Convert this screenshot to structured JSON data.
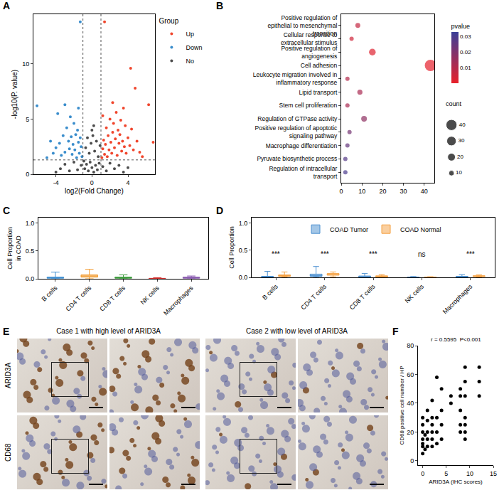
{
  "chart_data": [
    {
      "panel": "A",
      "type": "scatter",
      "x_label": "log2(Fold Change)",
      "y_label": "-log10(P. value)",
      "xlim": [
        -6.5,
        7
      ],
      "xticks": [
        -4,
        0,
        4
      ],
      "ylim": [
        0,
        14.5
      ],
      "yticks": [
        0,
        5,
        10
      ],
      "grid": false,
      "legend": "right",
      "legend_title": "Group",
      "marker": "circle",
      "thresholds": {
        "x": [
          -1,
          1
        ],
        "y": 1.3
      },
      "series": [
        {
          "name": "Up",
          "color": "#f0462d",
          "points": [
            [
              1.1,
              1.5
            ],
            [
              1.2,
              2.3
            ],
            [
              1.3,
              3.1
            ],
            [
              1.4,
              1.8
            ],
            [
              1.5,
              2.7
            ],
            [
              1.6,
              4.2
            ],
            [
              1.7,
              1.6
            ],
            [
              1.8,
              3.5
            ],
            [
              1.9,
              2.2
            ],
            [
              2.0,
              5.0
            ],
            [
              2.1,
              2.9
            ],
            [
              2.2,
              1.9
            ],
            [
              2.3,
              3.8
            ],
            [
              2.4,
              4.6
            ],
            [
              2.5,
              2.4
            ],
            [
              2.6,
              3.2
            ],
            [
              2.7,
              5.6
            ],
            [
              2.8,
              1.7
            ],
            [
              2.9,
              4.0
            ],
            [
              3.0,
              2.8
            ],
            [
              3.1,
              3.6
            ],
            [
              3.2,
              4.9
            ],
            [
              3.3,
              2.1
            ],
            [
              3.4,
              3.0
            ],
            [
              3.5,
              6.0
            ],
            [
              3.6,
              2.5
            ],
            [
              3.7,
              4.4
            ],
            [
              3.8,
              1.9
            ],
            [
              4.0,
              3.3
            ],
            [
              4.2,
              2.6
            ],
            [
              4.4,
              4.1
            ],
            [
              4.6,
              2.2
            ],
            [
              4.8,
              7.8
            ],
            [
              5.0,
              3.0
            ],
            [
              5.3,
              2.0
            ],
            [
              4.3,
              9.6
            ],
            [
              6.3,
              6.3
            ],
            [
              6.8,
              2.9
            ],
            [
              1.4,
              13.8
            ],
            [
              2.3,
              6.5
            ],
            [
              5.6,
              1.6
            ],
            [
              1.2,
              5.3
            ]
          ]
        },
        {
          "name": "Down",
          "color": "#3a8dcc",
          "points": [
            [
              -1.1,
              1.6
            ],
            [
              -1.2,
              2.5
            ],
            [
              -1.3,
              3.3
            ],
            [
              -1.4,
              1.9
            ],
            [
              -1.5,
              2.9
            ],
            [
              -1.6,
              4.0
            ],
            [
              -1.7,
              1.5
            ],
            [
              -1.8,
              3.6
            ],
            [
              -1.9,
              2.2
            ],
            [
              -2.0,
              4.6
            ],
            [
              -2.1,
              2.7
            ],
            [
              -2.2,
              1.8
            ],
            [
              -2.3,
              3.4
            ],
            [
              -2.4,
              5.2
            ],
            [
              -2.5,
              2.3
            ],
            [
              -2.6,
              3.0
            ],
            [
              -2.8,
              4.2
            ],
            [
              -3.0,
              2.0
            ],
            [
              -3.2,
              3.5
            ],
            [
              -3.4,
              1.7
            ],
            [
              -3.6,
              2.8
            ],
            [
              -3.8,
              5.5
            ],
            [
              -4.0,
              2.4
            ],
            [
              -4.3,
              1.9
            ],
            [
              -4.6,
              3.0
            ],
            [
              -1.3,
              13.8
            ],
            [
              -6.1,
              6.2
            ],
            [
              -1.5,
              6.0
            ],
            [
              -3.0,
              6.3
            ],
            [
              -5.0,
              1.5
            ]
          ]
        },
        {
          "name": "No",
          "color": "#4d4d4d",
          "points": [
            [
              -0.9,
              1.2
            ],
            [
              -0.7,
              2.4
            ],
            [
              -0.5,
              3.3
            ],
            [
              -0.3,
              1.9
            ],
            [
              -0.1,
              2.8
            ],
            [
              0.1,
              3.5
            ],
            [
              0.3,
              2.1
            ],
            [
              0.5,
              3.0
            ],
            [
              0.7,
              1.6
            ],
            [
              0.9,
              2.6
            ],
            [
              -0.8,
              0.5
            ],
            [
              -0.6,
              0.9
            ],
            [
              -0.4,
              0.3
            ],
            [
              -0.2,
              1.1
            ],
            [
              0,
              0.6
            ],
            [
              0.2,
              0.2
            ],
            [
              0.4,
              0.8
            ],
            [
              0.6,
              0.4
            ],
            [
              0.8,
              1.0
            ],
            [
              1.2,
              0.7
            ],
            [
              1.6,
              0.3
            ],
            [
              2.0,
              1.0
            ],
            [
              2.5,
              0.5
            ],
            [
              3.0,
              0.8
            ],
            [
              3.5,
              0.2
            ],
            [
              4.0,
              0.6
            ],
            [
              -1.2,
              0.8
            ],
            [
              -1.6,
              0.4
            ],
            [
              -2.0,
              1.1
            ],
            [
              -2.5,
              0.3
            ],
            [
              -3.0,
              0.9
            ],
            [
              -3.5,
              0.5
            ],
            [
              -4.0,
              0.2
            ],
            [
              0,
              4.0
            ],
            [
              0.2,
              4.4
            ]
          ]
        }
      ]
    },
    {
      "panel": "B",
      "type": "scatter",
      "marker": "circle",
      "grid": false,
      "categories": [
        "Positive regulation of epithelial to mesenchymal transition",
        "Cellular response to extracellular stimulus",
        "Positive regulation of angiogenesis",
        "Cell adhesion",
        "Leukocyte migration involved in inflammatory response",
        "Lipid transport",
        "Stem cell proliferation",
        "Regulation of GTPase activity",
        "Positive regulation of apoptotic signaling pathway",
        "Macrophage differentiation",
        "Pyruvate biosynthetic process",
        "Regulation of intracellular transport"
      ],
      "values": [
        8,
        5,
        15,
        43,
        3,
        9,
        3,
        11,
        4,
        3,
        2,
        2
      ],
      "pvalues": [
        0.007,
        0.005,
        0.002,
        0.0005,
        0.01,
        0.012,
        0.012,
        0.017,
        0.022,
        0.025,
        0.028,
        0.03
      ],
      "xlim": [
        0,
        45
      ],
      "xticks": [
        0,
        10,
        20,
        30,
        40
      ],
      "colorbar": {
        "title": "pvalue",
        "range": [
          0,
          0.033
        ],
        "ticks": [
          0.01,
          0.02,
          0.03
        ],
        "colors": [
          "#e8202a",
          "#3b3f98"
        ]
      },
      "size_legend": {
        "title": "count",
        "values": [
          10,
          20,
          30,
          40
        ]
      }
    },
    {
      "panel": "C",
      "type": "box",
      "y_label": "Cell Proportion in COAD",
      "grid": false,
      "categories": [
        "B cells",
        "CD4 T cells",
        "CD8 T cells",
        "NK cells",
        "Macrophages"
      ],
      "colors": [
        "#3f8fd2",
        "#f29a2e",
        "#3a9a3a",
        "#d3302f",
        "#8a5ab0"
      ],
      "stats": {
        "q1": [
          0.01,
          0.03,
          0.01,
          0.002,
          0.01
        ],
        "median": [
          0.02,
          0.05,
          0.02,
          0.005,
          0.02
        ],
        "q3": [
          0.03,
          0.07,
          0.03,
          0.008,
          0.03
        ],
        "lowerfence": [
          0,
          0,
          0,
          0,
          0
        ],
        "upperfence": [
          0.12,
          0.17,
          0.07,
          0.02,
          0.05
        ]
      },
      "ylim": [
        0,
        1.1
      ],
      "yticks": [
        {
          "value": 0,
          "label": "0.0"
        },
        {
          "value": 0.5,
          "label": "0.5"
        },
        {
          "value": 1,
          "label": "1.0"
        }
      ]
    },
    {
      "panel": "D",
      "type": "box",
      "y_label": "Cell Proportion",
      "grid": false,
      "legend": "top",
      "categories": [
        "B cells",
        "CD4 T cells",
        "CD8 T cells",
        "NK cells",
        "Macrophages"
      ],
      "significance": [
        "***",
        "***",
        "***",
        "ns",
        "***"
      ],
      "ylim": [
        0,
        1.1
      ],
      "yticks": [
        {
          "value": 0,
          "label": "0.0"
        },
        {
          "value": 0.5,
          "label": "0.5"
        },
        {
          "value": 1,
          "label": "1.0"
        }
      ],
      "series": [
        {
          "name": "COAD Tumor",
          "color": "#4a8fd0",
          "stats": {
            "q1": [
              0.005,
              0.02,
              0.005,
              0.001,
              0.005
            ],
            "median": [
              0.01,
              0.035,
              0.012,
              0.003,
              0.01
            ],
            "q3": [
              0.02,
              0.06,
              0.025,
              0.006,
              0.02
            ],
            "lowerfence": [
              0,
              0,
              0,
              0,
              0
            ],
            "upperfence": [
              0.11,
              0.2,
              0.07,
              0.015,
              0.05
            ]
          }
        },
        {
          "name": "COAD Normal",
          "color": "#f5a040",
          "stats": {
            "q1": [
              0.02,
              0.04,
              0.01,
              0.001,
              0.015
            ],
            "median": [
              0.03,
              0.055,
              0.018,
              0.003,
              0.022
            ],
            "q3": [
              0.045,
              0.07,
              0.028,
              0.005,
              0.03
            ],
            "lowerfence": [
              0.003,
              0.01,
              0,
              0,
              0.005
            ],
            "upperfence": [
              0.1,
              0.1,
              0.05,
              0.012,
              0.045
            ]
          }
        }
      ]
    },
    {
      "panel": "F",
      "type": "scatter",
      "marker": "circle",
      "grid": false,
      "color": "#000000",
      "x_label": "ARID3A (IHC scores)",
      "y_label": "CD68 positive cell number / HP",
      "annotation": "r = 0.5595  P<0.001",
      "xlim": [
        -1,
        15
      ],
      "xticks": [
        0,
        5,
        10,
        15
      ],
      "ylim": [
        -3,
        80
      ],
      "yticks": [
        0,
        20,
        40,
        60,
        80
      ],
      "points": [
        [
          0,
          5
        ],
        [
          0,
          10
        ],
        [
          0,
          12
        ],
        [
          0,
          15
        ],
        [
          0,
          20
        ],
        [
          0,
          25
        ],
        [
          0,
          30
        ],
        [
          0.5,
          8
        ],
        [
          0.5,
          18
        ],
        [
          1,
          10
        ],
        [
          1,
          15
        ],
        [
          1,
          20
        ],
        [
          1,
          28
        ],
        [
          1,
          35
        ],
        [
          2,
          10
        ],
        [
          2,
          15
        ],
        [
          2,
          20
        ],
        [
          2,
          25
        ],
        [
          2,
          30
        ],
        [
          2,
          42
        ],
        [
          3,
          12
        ],
        [
          3,
          20
        ],
        [
          3,
          30
        ],
        [
          3,
          58
        ],
        [
          4,
          15
        ],
        [
          4,
          25
        ],
        [
          4,
          35
        ],
        [
          4,
          50
        ],
        [
          6,
          40
        ],
        [
          6,
          45
        ],
        [
          8,
          20
        ],
        [
          8,
          25
        ],
        [
          8,
          35
        ],
        [
          8,
          45
        ],
        [
          8,
          50
        ],
        [
          9,
          15
        ],
        [
          9,
          20
        ],
        [
          9,
          25
        ],
        [
          9,
          30
        ],
        [
          9,
          45
        ],
        [
          9,
          55
        ],
        [
          9,
          65
        ],
        [
          12,
          45
        ],
        [
          12,
          55
        ],
        [
          12,
          65
        ]
      ]
    }
  ],
  "panel_e": {
    "panel": "E",
    "columns": [
      "Case 1 with high level of ARID3A",
      "Case 2 with low level of ARID3A"
    ],
    "rows": [
      "ARID3A",
      "CD68"
    ]
  }
}
